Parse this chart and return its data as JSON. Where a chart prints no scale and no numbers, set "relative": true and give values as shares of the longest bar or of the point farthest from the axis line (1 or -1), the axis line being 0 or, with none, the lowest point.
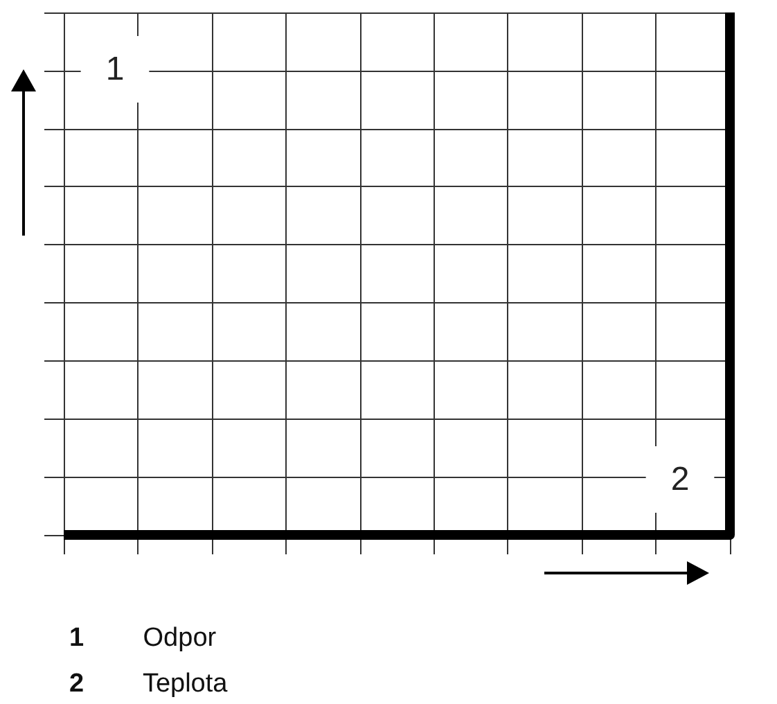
{
  "chart_data": {
    "type": "step",
    "categories": [
      null,
      null,
      null,
      null,
      null,
      null,
      null,
      null,
      null,
      null
    ],
    "values": [
      0,
      0,
      0,
      0,
      0,
      0,
      0,
      0,
      0,
      1
    ],
    "color": "#000000",
    "relative": true,
    "xlabel": "2",
    "ylabel": "1",
    "annotations": [
      "1 Odpor",
      "2 Teplota"
    ],
    "grid": true,
    "marker": "none",
    "line_style": "solid"
  }
}
